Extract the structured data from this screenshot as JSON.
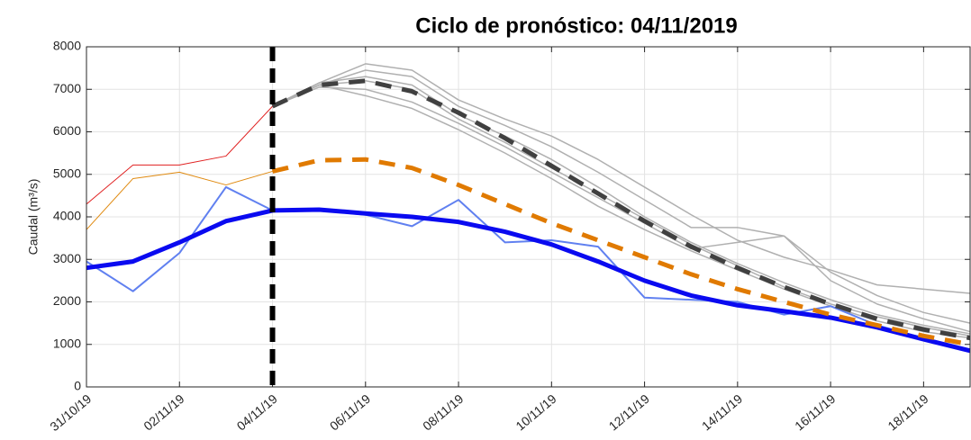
{
  "chart_data": {
    "type": "line",
    "title": "Ciclo de pronóstico: 04/11/2019",
    "y_label": "Caudal (m³/s)",
    "categories": [
      "31/10/19",
      null,
      "02/11/19",
      null,
      "04/11/19",
      null,
      "06/11/19",
      null,
      "08/11/19",
      null,
      "10/11/19",
      null,
      "12/11/19",
      null,
      "14/11/19",
      null,
      "16/11/19",
      null,
      "18/11/19",
      null
    ],
    "ylim": [
      0,
      8000
    ],
    "yticks": [
      0,
      1000,
      2000,
      3000,
      4000,
      5000,
      6000,
      7000,
      8000
    ],
    "grid": true,
    "vline": "04/11/19",
    "series": [
      {
        "color": "#b0b0b0",
        "width": 1.5,
        "values": [
          null,
          null,
          null,
          null,
          6600,
          7150,
          7600,
          7450,
          6750,
          6300,
          5900,
          5350,
          4700,
          4050,
          3450,
          3050,
          2750,
          2400,
          2300,
          2200
        ]
      },
      {
        "color": "#b0b0b0",
        "width": 1.5,
        "values": [
          null,
          null,
          null,
          null,
          6600,
          7100,
          7450,
          7300,
          6600,
          6150,
          5650,
          5050,
          4400,
          3750,
          3750,
          3550,
          2700,
          2150,
          1750,
          1500
        ]
      },
      {
        "color": "#b0b0b0",
        "width": 1.5,
        "values": [
          null,
          null,
          null,
          null,
          6600,
          7050,
          7000,
          6700,
          6200,
          5650,
          5050,
          4450,
          3850,
          3250,
          3400,
          3550,
          2500,
          1950,
          1600,
          1300
        ]
      },
      {
        "color": "#b0b0b0",
        "width": 1.5,
        "values": [
          null,
          null,
          null,
          null,
          6600,
          7100,
          6850,
          6550,
          6050,
          5500,
          4900,
          4250,
          3700,
          3200,
          2750,
          2300,
          1900,
          1550,
          1300,
          1150
        ]
      },
      {
        "color": "#b0b0b0",
        "width": 1.5,
        "values": [
          null,
          null,
          null,
          null,
          6600,
          7150,
          7300,
          7100,
          6400,
          5900,
          5350,
          4700,
          4000,
          3400,
          2900,
          2450,
          2050,
          1700,
          1450,
          1250
        ]
      },
      {
        "color": "#b0b0b0",
        "width": 1.5,
        "values": [
          null,
          null,
          null,
          null,
          6600,
          7100,
          7200,
          7000,
          6300,
          5750,
          5150,
          4550,
          3950,
          3350,
          2850,
          2350,
          1950,
          1650,
          1400,
          1200
        ]
      },
      {
        "color": "#e02020",
        "width": 1,
        "values": [
          4300,
          5220,
          5220,
          5430,
          6600,
          null,
          null,
          null,
          null,
          null,
          null,
          null,
          null,
          null,
          null,
          null,
          null,
          null,
          null,
          null
        ]
      },
      {
        "color": "#e08a10",
        "width": 1,
        "values": [
          3700,
          4900,
          5050,
          4750,
          5070,
          null,
          null,
          null,
          null,
          null,
          null,
          null,
          null,
          null,
          null,
          null,
          null,
          null,
          null,
          null
        ]
      },
      {
        "color": "#6080f0",
        "width": 2,
        "values": [
          2950,
          2250,
          3150,
          4700,
          4150,
          4150,
          4050,
          3780,
          4400,
          3400,
          3450,
          3300,
          2100,
          2050,
          2000,
          1700,
          1900,
          1450,
          1150,
          850
        ]
      },
      {
        "color": "#0a0af0",
        "width": 5,
        "values": [
          2800,
          2950,
          3400,
          3900,
          4150,
          4170,
          4080,
          4000,
          3880,
          3650,
          3350,
          2950,
          2500,
          2150,
          1920,
          1780,
          1630,
          1400,
          1120,
          850
        ]
      },
      {
        "color": "#e07a00",
        "width": 5,
        "dash": true,
        "values": [
          null,
          null,
          null,
          null,
          5070,
          5330,
          5350,
          5150,
          4750,
          4300,
          3850,
          3450,
          3050,
          2650,
          2300,
          2000,
          1700,
          1450,
          1200,
          1000
        ]
      },
      {
        "color": "#404040",
        "width": 5,
        "dash": true,
        "values": [
          null,
          null,
          null,
          null,
          6600,
          7100,
          7200,
          6950,
          6450,
          5850,
          5200,
          4550,
          3900,
          3300,
          2800,
          2350,
          1950,
          1600,
          1350,
          1150
        ]
      }
    ]
  }
}
